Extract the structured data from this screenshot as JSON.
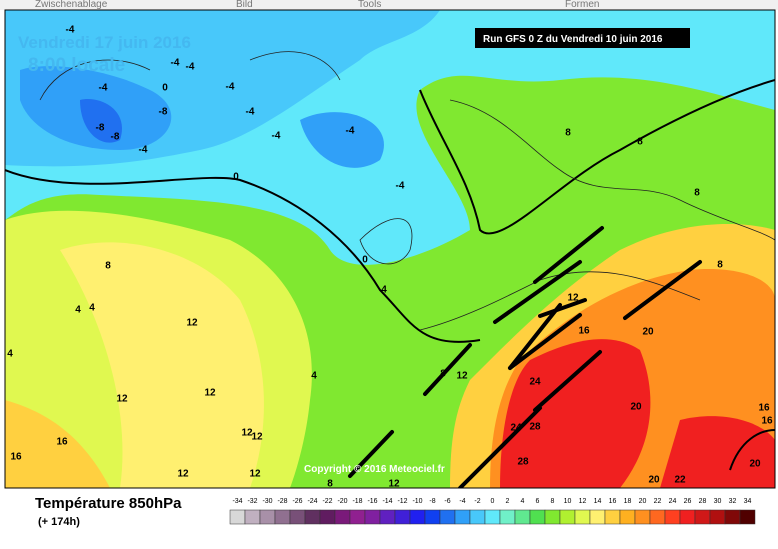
{
  "menu": [
    "Zwischenablage",
    "Bild",
    "Tools",
    "Formen"
  ],
  "map": {
    "date": "Vendredi 17 juin 2016",
    "time": "8:00 locale",
    "run": "Run GFS 0 Z du Vendredi 10 juin 2016",
    "copyright": "Copyright © 2016 Meteociel.fr",
    "labels": [
      -4,
      -4,
      -4,
      0,
      -4,
      -4,
      -8,
      -8,
      -8,
      -4,
      -4,
      -4,
      -4,
      -4,
      0,
      0,
      4,
      8,
      4,
      4,
      12,
      4,
      12,
      12,
      4,
      8,
      12,
      16,
      12,
      12,
      12,
      12,
      8,
      12,
      8,
      8,
      8,
      8,
      12,
      16,
      20,
      24,
      20,
      24,
      28,
      28,
      20,
      22,
      20,
      16,
      16,
      16
    ]
  },
  "legend": {
    "title": "Température 850hPa",
    "subtitle": "(+ 174h)",
    "ticks": [
      -34,
      -32,
      -30,
      -28,
      -26,
      -24,
      -22,
      -20,
      -18,
      -16,
      -14,
      -12,
      -10,
      -8,
      -6,
      -4,
      -2,
      0,
      2,
      4,
      6,
      8,
      10,
      12,
      14,
      16,
      18,
      20,
      22,
      24,
      26,
      28,
      30,
      32,
      34
    ],
    "colors": [
      "#d8d8d8",
      "#c0b0c0",
      "#a890a8",
      "#907090",
      "#785078",
      "#603060",
      "#601c60",
      "#7a1a7a",
      "#902090",
      "#8020a0",
      "#6020c0",
      "#4020d8",
      "#2020f0",
      "#1040f0",
      "#2070f0",
      "#30a0f8",
      "#48c8fa",
      "#60e8fa",
      "#70f0c8",
      "#60e890",
      "#50e050",
      "#80e830",
      "#b0f030",
      "#e0f850",
      "#fff070",
      "#ffd040",
      "#ffb020",
      "#ff9020",
      "#ff6820",
      "#ff4020",
      "#f02020",
      "#d01818",
      "#b01010",
      "#800808",
      "#500000"
    ]
  }
}
